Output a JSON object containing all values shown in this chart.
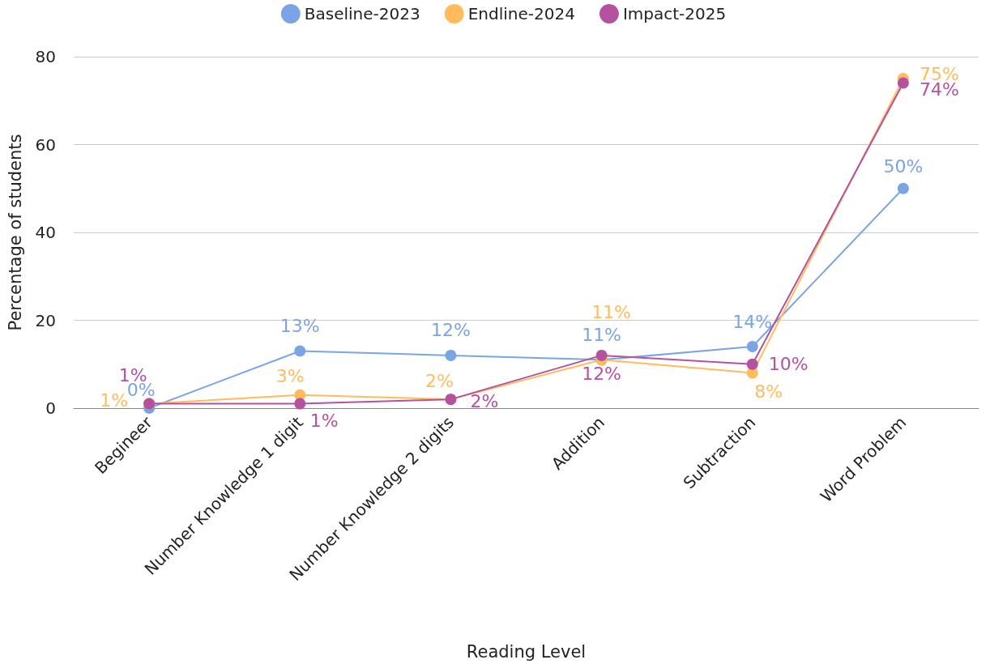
{
  "chart_data": {
    "type": "line",
    "xlabel": "Reading Level",
    "ylabel": "Percentage of students",
    "categories": [
      "Begineer",
      "Number Knowledge 1 digit",
      "Number Knowledge 2 digits",
      "Addition",
      "Subtraction",
      "Word Problem"
    ],
    "series": [
      {
        "name": "Baseline-2023",
        "color": "#7ba4e6",
        "values": [
          0,
          13,
          12,
          11,
          14,
          50
        ],
        "value_labels": [
          "0%",
          "13%",
          "12%",
          "11%",
          "14%",
          "50%"
        ]
      },
      {
        "name": "Endline-2024",
        "color": "#ffbb5c",
        "values": [
          1,
          3,
          2,
          11,
          8,
          75
        ],
        "value_labels": [
          "1%",
          "3%",
          "2%",
          "11%",
          "8%",
          "75%"
        ]
      },
      {
        "name": "Impact-2025",
        "color": "#b5529f",
        "values": [
          1,
          1,
          2,
          12,
          10,
          74
        ],
        "value_labels": [
          "1%",
          "1%",
          "2%",
          "12%",
          "10%",
          "74%"
        ]
      }
    ],
    "ylim": [
      0,
      80
    ],
    "yticks": [
      0,
      20,
      40,
      60,
      80
    ],
    "grid": "y",
    "legend": "top",
    "marker": "circle",
    "line_style": "solid"
  }
}
